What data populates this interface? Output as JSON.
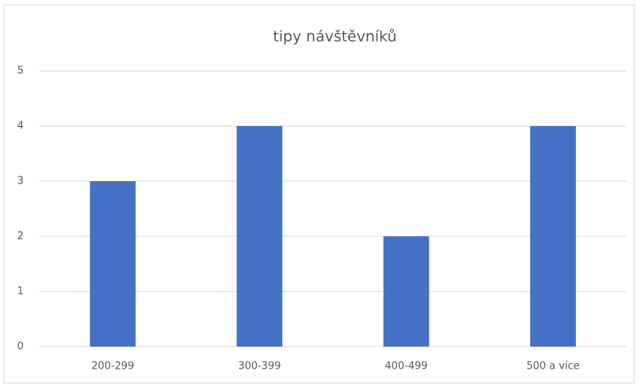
{
  "chart_data": {
    "type": "bar",
    "title": "tipy návštěvníků",
    "categories": [
      "200-299",
      "300-399",
      "400-499",
      "500 a více"
    ],
    "values": [
      3,
      4,
      2,
      4
    ],
    "color": "#4472c4",
    "ylim": [
      0,
      5
    ],
    "yticks": [
      0,
      1,
      2,
      3,
      4,
      5
    ],
    "grid": true
  }
}
